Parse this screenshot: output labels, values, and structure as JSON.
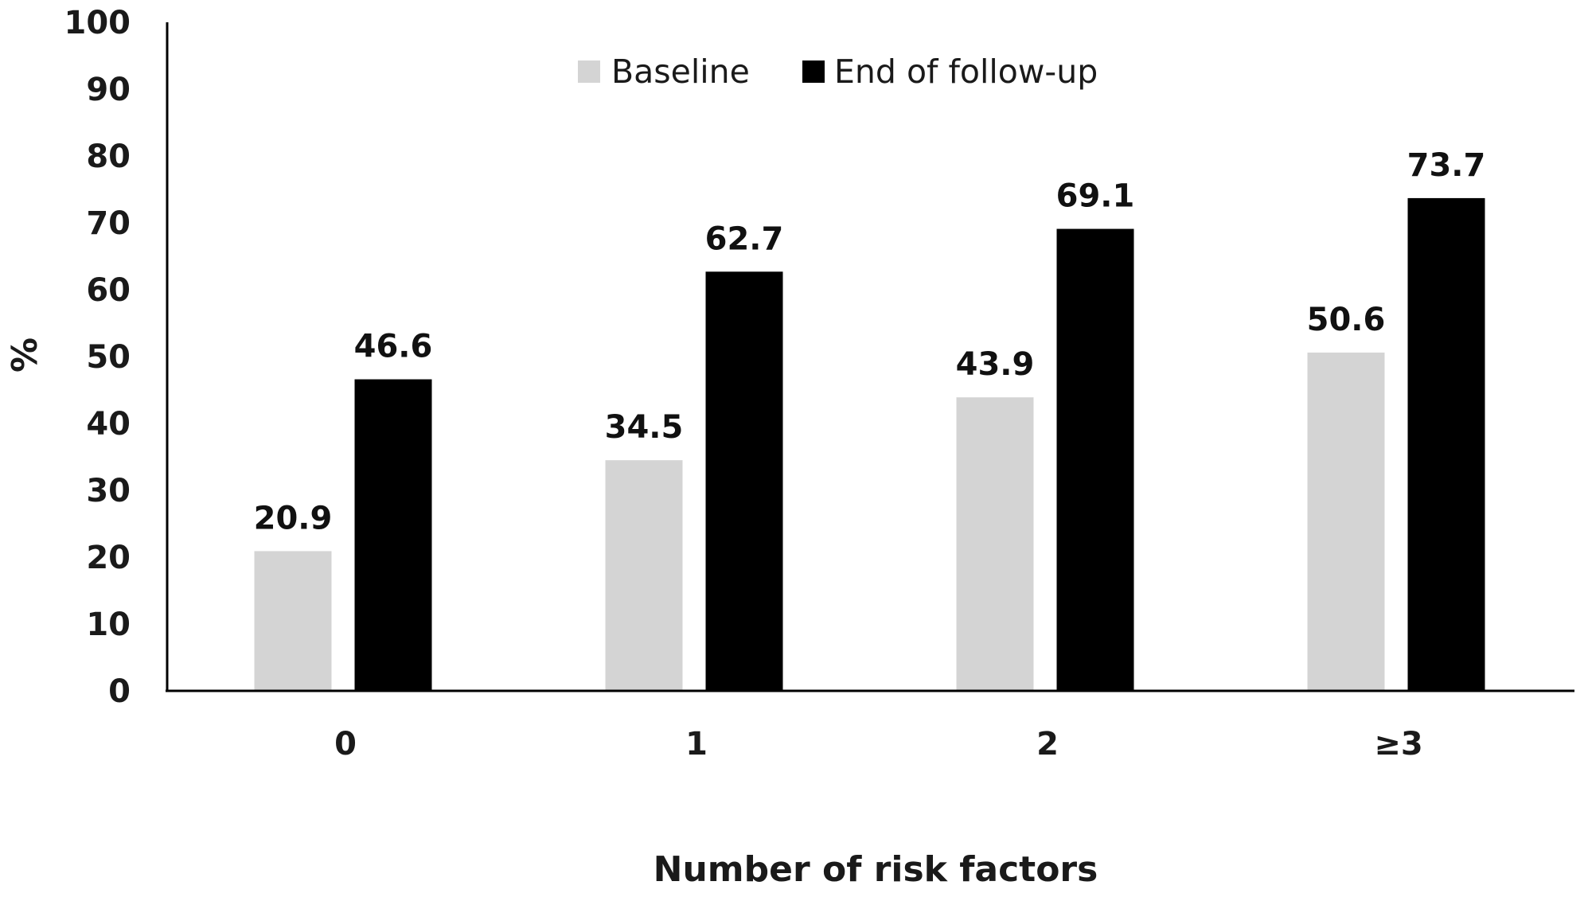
{
  "chart_data": {
    "type": "bar",
    "title": "",
    "xlabel": "Number of risk factors",
    "ylabel": "%",
    "categories": [
      "0",
      "1",
      "2",
      "≥3"
    ],
    "series": [
      {
        "name": "Baseline",
        "color": "#d4d4d4",
        "values": [
          20.9,
          34.5,
          43.9,
          50.6
        ],
        "labels": [
          "20.9",
          "34.5",
          "43.9",
          "50.6"
        ]
      },
      {
        "name": "End of follow-up",
        "color": "#000000",
        "values": [
          46.6,
          62.7,
          69.1,
          73.7
        ],
        "labels": [
          "46.6",
          "62.7",
          "69.1",
          "73.7"
        ]
      }
    ],
    "ylim": [
      0,
      100
    ],
    "yticks": [
      "0",
      "10",
      "20",
      "30",
      "40",
      "50",
      "60",
      "70",
      "80",
      "90",
      "100"
    ],
    "grid": false,
    "legend_position": "top-center"
  }
}
